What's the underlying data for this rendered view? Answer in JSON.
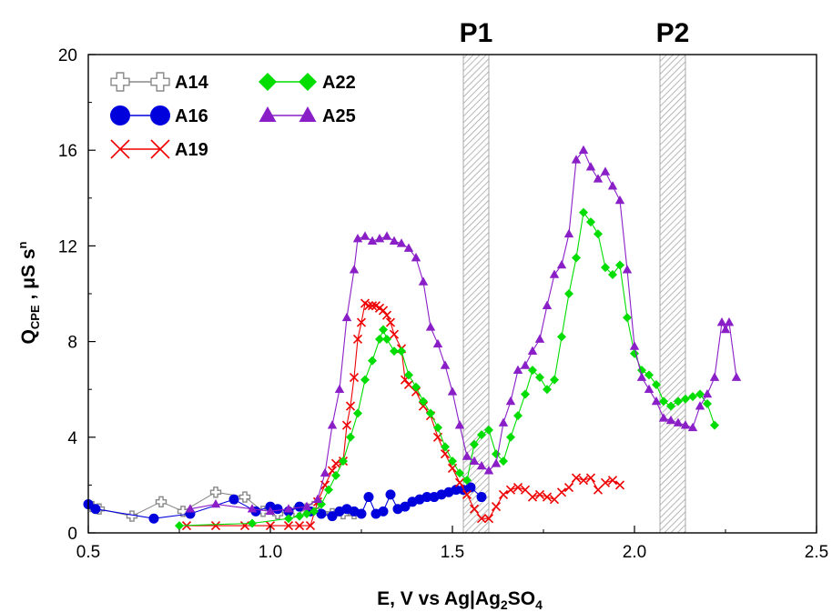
{
  "chart_data": {
    "type": "line",
    "xlabel": "E, V vs Ag|Ag",
    "xlabel_sub": "2",
    "xlabel_tail": "SO",
    "xlabel_sub2": "4",
    "ylabel_main": "Q",
    "ylabel_sub": "CPE",
    "ylabel_tail": " , μS s",
    "ylabel_sup": "n",
    "xlim": [
      0.5,
      2.5
    ],
    "ylim": [
      0,
      20
    ],
    "xticks": [
      "0.5",
      "1.0",
      "1.5",
      "2.0",
      "2.5"
    ],
    "yticks": [
      "0",
      "4",
      "8",
      "12",
      "16",
      "20"
    ],
    "grid": false,
    "legend_position": "top-left",
    "regions": [
      {
        "label": "P1",
        "x0": 1.53,
        "x1": 1.6
      },
      {
        "label": "P2",
        "x0": 2.07,
        "x1": 2.14
      }
    ],
    "series": [
      {
        "name": "A14",
        "marker": "cross-open",
        "color": "#888888",
        "points": [
          [
            0.51,
            1.1
          ],
          [
            0.53,
            1.0
          ],
          [
            0.62,
            0.7
          ],
          [
            0.7,
            1.3
          ],
          [
            0.76,
            0.9
          ],
          [
            0.85,
            1.7
          ],
          [
            0.93,
            1.5
          ],
          [
            0.98,
            0.9
          ],
          [
            1.02,
            0.8
          ],
          [
            1.07,
            0.9
          ],
          [
            1.1,
            1.0
          ],
          [
            1.12,
            1.1
          ],
          [
            1.17,
            0.8
          ],
          [
            1.2,
            0.8
          ],
          [
            1.23,
            0.8
          ]
        ]
      },
      {
        "name": "A16",
        "marker": "circle",
        "color": "#0000dd",
        "points": [
          [
            0.5,
            1.2
          ],
          [
            0.52,
            1.0
          ],
          [
            0.68,
            0.6
          ],
          [
            0.78,
            0.8
          ],
          [
            0.9,
            1.4
          ],
          [
            0.96,
            0.9
          ],
          [
            1.0,
            1.1
          ],
          [
            1.02,
            1.0
          ],
          [
            1.05,
            0.9
          ],
          [
            1.08,
            1.1
          ],
          [
            1.11,
            0.9
          ],
          [
            1.14,
            0.8
          ],
          [
            1.17,
            0.7
          ],
          [
            1.19,
            0.9
          ],
          [
            1.21,
            1.0
          ],
          [
            1.23,
            0.9
          ],
          [
            1.25,
            0.8
          ],
          [
            1.27,
            1.5
          ],
          [
            1.29,
            0.8
          ],
          [
            1.31,
            0.9
          ],
          [
            1.33,
            1.6
          ],
          [
            1.35,
            1.0
          ],
          [
            1.37,
            1.1
          ],
          [
            1.39,
            1.3
          ],
          [
            1.41,
            1.4
          ],
          [
            1.43,
            1.5
          ],
          [
            1.45,
            1.5
          ],
          [
            1.47,
            1.6
          ],
          [
            1.49,
            1.7
          ],
          [
            1.51,
            1.8
          ],
          [
            1.53,
            1.8
          ],
          [
            1.55,
            1.9
          ],
          [
            1.58,
            1.5
          ]
        ]
      },
      {
        "name": "A19",
        "marker": "x",
        "color": "#ee0000",
        "points": [
          [
            0.77,
            0.3
          ],
          [
            0.85,
            0.3
          ],
          [
            0.93,
            0.3
          ],
          [
            1.0,
            0.3
          ],
          [
            1.05,
            0.3
          ],
          [
            1.08,
            0.3
          ],
          [
            1.11,
            0.3
          ],
          [
            1.13,
            1.3
          ],
          [
            1.15,
            2.0
          ],
          [
            1.17,
            2.6
          ],
          [
            1.18,
            2.9
          ],
          [
            1.2,
            3.0
          ],
          [
            1.21,
            4.5
          ],
          [
            1.22,
            5.3
          ],
          [
            1.23,
            6.5
          ],
          [
            1.24,
            8.1
          ],
          [
            1.25,
            8.8
          ],
          [
            1.26,
            9.6
          ],
          [
            1.27,
            9.5
          ],
          [
            1.28,
            9.5
          ],
          [
            1.29,
            9.5
          ],
          [
            1.3,
            9.4
          ],
          [
            1.31,
            9.3
          ],
          [
            1.32,
            9.1
          ],
          [
            1.33,
            8.8
          ],
          [
            1.34,
            8.3
          ],
          [
            1.36,
            7.7
          ],
          [
            1.37,
            6.4
          ],
          [
            1.38,
            6.2
          ],
          [
            1.4,
            5.9
          ],
          [
            1.42,
            5.3
          ],
          [
            1.44,
            4.9
          ],
          [
            1.46,
            4.0
          ],
          [
            1.48,
            3.3
          ],
          [
            1.5,
            2.7
          ],
          [
            1.52,
            2.1
          ],
          [
            1.54,
            1.6
          ],
          [
            1.56,
            1.0
          ],
          [
            1.58,
            0.6
          ],
          [
            1.6,
            0.6
          ],
          [
            1.62,
            1.1
          ],
          [
            1.64,
            1.6
          ],
          [
            1.66,
            1.8
          ],
          [
            1.68,
            1.9
          ],
          [
            1.7,
            1.8
          ],
          [
            1.72,
            1.5
          ],
          [
            1.74,
            1.6
          ],
          [
            1.76,
            1.5
          ],
          [
            1.78,
            1.4
          ],
          [
            1.8,
            1.7
          ],
          [
            1.82,
            1.9
          ],
          [
            1.84,
            2.3
          ],
          [
            1.86,
            2.2
          ],
          [
            1.88,
            2.3
          ],
          [
            1.9,
            1.8
          ],
          [
            1.92,
            2.1
          ],
          [
            1.94,
            2.2
          ],
          [
            1.96,
            2.0
          ]
        ]
      },
      {
        "name": "A22",
        "marker": "diamond",
        "color": "#00dd00",
        "points": [
          [
            0.75,
            0.3
          ],
          [
            0.95,
            0.4
          ],
          [
            1.05,
            0.6
          ],
          [
            1.08,
            0.7
          ],
          [
            1.1,
            0.8
          ],
          [
            1.12,
            0.9
          ],
          [
            1.14,
            1.2
          ],
          [
            1.16,
            1.8
          ],
          [
            1.18,
            2.4
          ],
          [
            1.2,
            3.0
          ],
          [
            1.22,
            4.0
          ],
          [
            1.24,
            5.0
          ],
          [
            1.26,
            6.4
          ],
          [
            1.28,
            7.2
          ],
          [
            1.3,
            8.1
          ],
          [
            1.31,
            8.5
          ],
          [
            1.32,
            8.1
          ],
          [
            1.34,
            7.6
          ],
          [
            1.36,
            7.6
          ],
          [
            1.38,
            6.6
          ],
          [
            1.4,
            6.1
          ],
          [
            1.42,
            5.5
          ],
          [
            1.44,
            5.0
          ],
          [
            1.46,
            4.4
          ],
          [
            1.48,
            3.6
          ],
          [
            1.5,
            3.0
          ],
          [
            1.52,
            2.5
          ],
          [
            1.54,
            2.2
          ],
          [
            1.56,
            3.7
          ],
          [
            1.58,
            4.1
          ],
          [
            1.6,
            4.3
          ],
          [
            1.62,
            3.3
          ],
          [
            1.64,
            3.0
          ],
          [
            1.66,
            4.0
          ],
          [
            1.68,
            4.9
          ],
          [
            1.7,
            5.8
          ],
          [
            1.72,
            6.8
          ],
          [
            1.74,
            6.5
          ],
          [
            1.76,
            6.0
          ],
          [
            1.78,
            6.4
          ],
          [
            1.8,
            8.2
          ],
          [
            1.82,
            10.0
          ],
          [
            1.84,
            11.5
          ],
          [
            1.86,
            13.4
          ],
          [
            1.88,
            13.0
          ],
          [
            1.9,
            12.5
          ],
          [
            1.92,
            11.1
          ],
          [
            1.94,
            10.8
          ],
          [
            1.96,
            11.2
          ],
          [
            1.98,
            9.0
          ],
          [
            2.0,
            7.5
          ],
          [
            2.02,
            6.8
          ],
          [
            2.04,
            6.6
          ],
          [
            2.06,
            6.2
          ],
          [
            2.08,
            5.5
          ],
          [
            2.1,
            5.3
          ],
          [
            2.12,
            5.5
          ],
          [
            2.14,
            5.6
          ],
          [
            2.16,
            5.7
          ],
          [
            2.18,
            5.8
          ],
          [
            2.2,
            5.4
          ],
          [
            2.22,
            4.5
          ]
        ]
      },
      {
        "name": "A25",
        "marker": "triangle",
        "color": "#8a1fc8",
        "points": [
          [
            0.78,
            1.0
          ],
          [
            0.85,
            1.2
          ],
          [
            0.95,
            1.0
          ],
          [
            1.0,
            0.9
          ],
          [
            1.05,
            1.0
          ],
          [
            1.1,
            1.1
          ],
          [
            1.13,
            1.4
          ],
          [
            1.15,
            2.5
          ],
          [
            1.17,
            4.5
          ],
          [
            1.19,
            6.0
          ],
          [
            1.21,
            9.0
          ],
          [
            1.23,
            11.0
          ],
          [
            1.24,
            12.3
          ],
          [
            1.26,
            12.4
          ],
          [
            1.28,
            12.2
          ],
          [
            1.3,
            12.3
          ],
          [
            1.32,
            12.4
          ],
          [
            1.34,
            12.2
          ],
          [
            1.36,
            12.1
          ],
          [
            1.38,
            11.9
          ],
          [
            1.4,
            11.5
          ],
          [
            1.42,
            10.5
          ],
          [
            1.44,
            8.6
          ],
          [
            1.46,
            7.9
          ],
          [
            1.48,
            7.0
          ],
          [
            1.5,
            5.9
          ],
          [
            1.52,
            4.5
          ],
          [
            1.54,
            3.2
          ],
          [
            1.56,
            3.0
          ],
          [
            1.58,
            2.8
          ],
          [
            1.6,
            2.6
          ],
          [
            1.62,
            2.9
          ],
          [
            1.64,
            4.6
          ],
          [
            1.66,
            5.5
          ],
          [
            1.68,
            6.8
          ],
          [
            1.7,
            7.0
          ],
          [
            1.72,
            7.6
          ],
          [
            1.74,
            8.1
          ],
          [
            1.76,
            9.5
          ],
          [
            1.78,
            10.8
          ],
          [
            1.8,
            11.2
          ],
          [
            1.82,
            12.5
          ],
          [
            1.84,
            15.6
          ],
          [
            1.86,
            16.0
          ],
          [
            1.88,
            15.3
          ],
          [
            1.9,
            14.8
          ],
          [
            1.92,
            15.1
          ],
          [
            1.94,
            14.5
          ],
          [
            1.96,
            13.9
          ],
          [
            1.98,
            11.0
          ],
          [
            2.0,
            7.8
          ],
          [
            2.02,
            6.5
          ],
          [
            2.04,
            6.0
          ],
          [
            2.06,
            5.5
          ],
          [
            2.08,
            4.8
          ],
          [
            2.1,
            4.7
          ],
          [
            2.12,
            4.6
          ],
          [
            2.14,
            4.5
          ],
          [
            2.16,
            4.4
          ],
          [
            2.18,
            5.3
          ],
          [
            2.2,
            5.8
          ],
          [
            2.22,
            6.5
          ],
          [
            2.24,
            8.8
          ],
          [
            2.25,
            8.5
          ],
          [
            2.26,
            8.8
          ],
          [
            2.28,
            6.5
          ]
        ]
      }
    ]
  }
}
